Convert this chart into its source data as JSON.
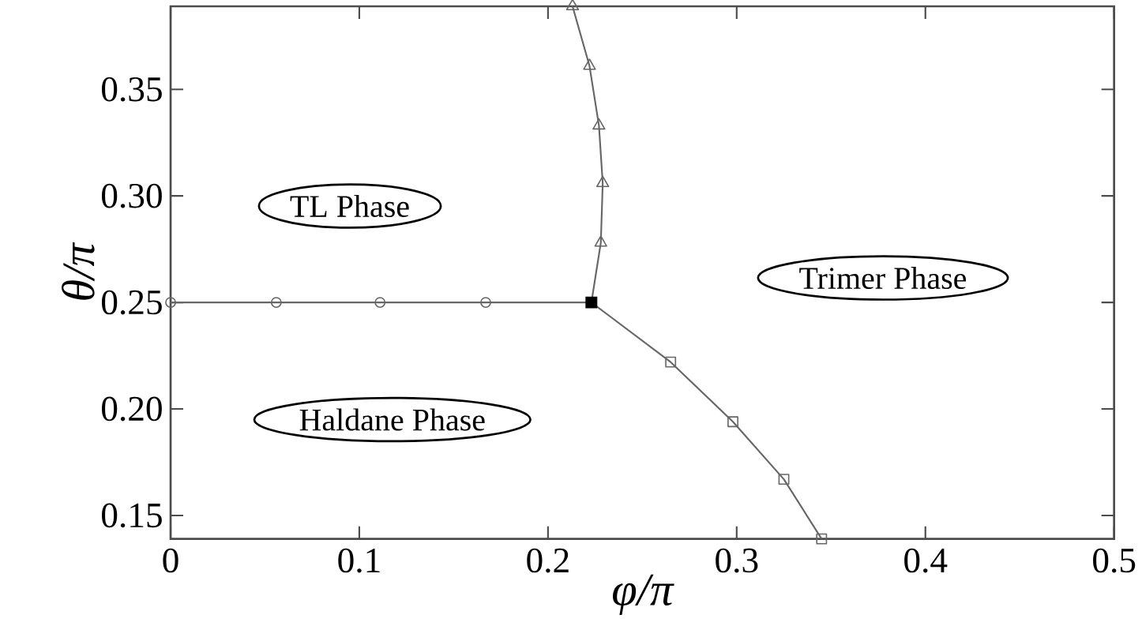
{
  "chart_data": {
    "type": "line",
    "xlabel": "φ/π",
    "ylabel": "θ/π",
    "xlim": [
      0,
      0.5
    ],
    "ylim": [
      0.139,
      0.389
    ],
    "xticks": [
      0,
      0.1,
      0.2,
      0.3,
      0.4,
      0.5
    ],
    "yticks": [
      {
        "value": 0.15,
        "label": "0.15"
      },
      {
        "value": 0.2,
        "label": "0.20"
      },
      {
        "value": 0.25,
        "label": "0.25"
      },
      {
        "value": 0.3,
        "label": "0.30"
      },
      {
        "value": 0.35,
        "label": "0.35"
      }
    ],
    "grid": false,
    "line_style": "solid",
    "series": [
      {
        "marker": "circle",
        "color": "#666666",
        "x": [
          0,
          0.056,
          0.111,
          0.167,
          0.223
        ],
        "values": [
          0.25,
          0.25,
          0.25,
          0.25,
          0.25
        ]
      },
      {
        "marker": "triangle",
        "color": "#666666",
        "x": [
          0.223,
          0.228,
          0.229,
          0.227,
          0.222,
          0.213
        ],
        "values": [
          0.25,
          0.278,
          0.306,
          0.333,
          0.361,
          0.389
        ]
      },
      {
        "marker": "square",
        "color": "#666666",
        "x": [
          0.223,
          0.265,
          0.298,
          0.325,
          0.345
        ],
        "values": [
          0.25,
          0.222,
          0.194,
          0.167,
          0.139
        ]
      },
      {
        "type": "scatter",
        "marker": "square",
        "color": "#000000",
        "x": [
          0.223
        ],
        "values": [
          0.25
        ]
      }
    ],
    "annotations": [
      "TL Phase",
      "Trimer Phase",
      "Haldane Phase"
    ]
  }
}
